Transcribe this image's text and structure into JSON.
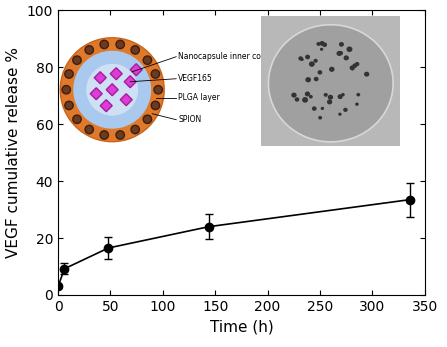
{
  "chart_data": {
    "type": "line",
    "x_label": "Time (h)",
    "y_label": "VEGF cumulative release %",
    "x": [
      0,
      6,
      48,
      144,
      336
    ],
    "series": [
      {
        "name": "VEGF",
        "color": "#000000",
        "marker": "o",
        "line_style": "solid",
        "values": [
          3,
          9.2,
          16.5,
          24,
          33.5
        ],
        "errors": [
          0.5,
          2,
          4,
          4.5,
          6
        ]
      }
    ],
    "xlim": [
      0,
      350
    ],
    "xticks": [
      0,
      50,
      100,
      150,
      200,
      250,
      300,
      350
    ],
    "ylim": [
      0,
      100
    ],
    "yticks": [
      0,
      20,
      40,
      60,
      80,
      100
    ],
    "grid": false,
    "annotations": [
      "Nanocapsule inner core",
      "VEGF165",
      "PLGA layer",
      "SPION"
    ]
  }
}
